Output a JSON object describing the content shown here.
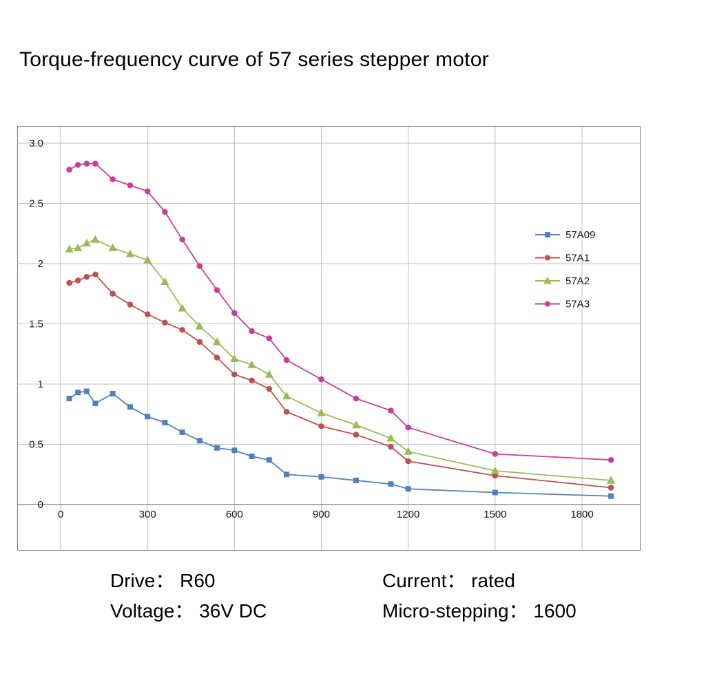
{
  "title": "Torque-frequency curve of 57 series stepper motor",
  "footnotes": {
    "drive": "Drive： R60",
    "current": "Current： rated",
    "voltage": "Voltage： 36V DC",
    "microstepping": "Micro-stepping： 1600"
  },
  "chart_data": {
    "type": "line",
    "title": "Torque-frequency curve of 57 series stepper motor",
    "xlabel": "",
    "ylabel": "",
    "xlim": [
      0,
      2000
    ],
    "ylim": [
      0,
      3.0
    ],
    "grid": true,
    "legend_position": "right-inside",
    "x_ticks": [
      0,
      300,
      600,
      900,
      1200,
      1500,
      1800
    ],
    "x_tick_labels": [
      "0",
      "300",
      "600",
      "900",
      "1200",
      "1500",
      "1800"
    ],
    "y_ticks": [
      0,
      0.5,
      1,
      1.5,
      2,
      2.5,
      3
    ],
    "y_tick_labels": [
      "0",
      "0.5",
      "1",
      "1.5",
      "2",
      "2.5",
      "3.0"
    ],
    "x": [
      30,
      60,
      90,
      120,
      180,
      240,
      300,
      360,
      420,
      480,
      540,
      600,
      660,
      720,
      780,
      900,
      1020,
      1140,
      1200,
      1500,
      1900
    ],
    "series": [
      {
        "name": "57A09",
        "color": "#4f81bd",
        "marker": "square",
        "values": [
          0.88,
          0.93,
          0.94,
          0.84,
          0.92,
          0.81,
          0.73,
          0.68,
          0.6,
          0.53,
          0.47,
          0.45,
          0.4,
          0.37,
          0.25,
          0.23,
          0.2,
          0.17,
          0.13,
          0.1,
          0.07
        ]
      },
      {
        "name": "57A1",
        "color": "#c0504d",
        "marker": "circle",
        "values": [
          1.84,
          1.86,
          1.89,
          1.91,
          1.75,
          1.66,
          1.58,
          1.51,
          1.45,
          1.35,
          1.22,
          1.08,
          1.03,
          0.96,
          0.77,
          0.65,
          0.58,
          0.48,
          0.36,
          0.24,
          0.14
        ]
      },
      {
        "name": "57A2",
        "color": "#9bbb59",
        "marker": "triangle",
        "values": [
          2.12,
          2.13,
          2.17,
          2.2,
          2.13,
          2.08,
          2.03,
          1.85,
          1.63,
          1.48,
          1.35,
          1.21,
          1.16,
          1.08,
          0.9,
          0.76,
          0.66,
          0.55,
          0.44,
          0.28,
          0.2
        ]
      },
      {
        "name": "57A3",
        "color": "#ca3c98",
        "marker": "circle",
        "values": [
          2.78,
          2.82,
          2.83,
          2.83,
          2.7,
          2.65,
          2.6,
          2.43,
          2.2,
          1.98,
          1.78,
          1.59,
          1.44,
          1.38,
          1.2,
          1.04,
          0.88,
          0.78,
          0.64,
          0.42,
          0.37
        ]
      }
    ]
  }
}
